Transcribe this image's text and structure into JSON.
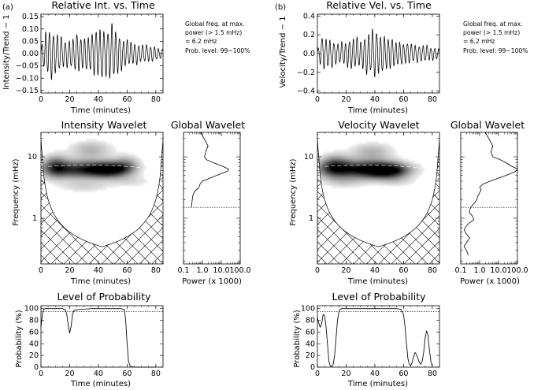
{
  "colors": {
    "ink": "#000000",
    "background": "#ffffff",
    "wavelet_peak": "#000000"
  },
  "columns": [
    {
      "tag": "(a)",
      "series": {
        "title": "Relative Int. vs. Time",
        "ylabel": "Intensity/Trend − 1",
        "xlabel": "Time (minutes)",
        "note": [
          "Global freq. at max.",
          "power (> 1.5 mHz)",
          "= 6.2 mHz",
          "Prob. level: 99−100%"
        ]
      },
      "wavelet": {
        "title": "Intensity Wavelet",
        "ylabel": "Frequency (mHz)",
        "xlabel": "Time (minutes)"
      },
      "global": {
        "title": "Global Wavelet",
        "xlabel": "Power (x 1000)"
      },
      "prob": {
        "title": "Level of Probability",
        "ylabel": "Probability (%)",
        "xlabel": "Time (minutes)"
      }
    },
    {
      "tag": "(b)",
      "series": {
        "title": "Relative Vel. vs. Time",
        "ylabel": "Velocity/Trend − 1",
        "xlabel": "Time (minutes)",
        "note": [
          "Global freq. at max.",
          "power (> 1.5 mHz)",
          "= 6.2 mHz",
          "Prob. level: 99−100%"
        ]
      },
      "wavelet": {
        "title": "Velocity Wavelet",
        "ylabel": "Frequency (mHz)",
        "xlabel": "Time (minutes)"
      },
      "global": {
        "title": "Global Wavelet",
        "xlabel": "Power (x 1000)"
      },
      "prob": {
        "title": "Level of Probability",
        "ylabel": "Probability (%)",
        "xlabel": "Time (minutes)"
      }
    }
  ],
  "chart_data": [
    {
      "panel": "a-series",
      "type": "line",
      "title": "Relative Int. vs. Time",
      "xlabel": "Time (minutes)",
      "ylabel": "Intensity/Trend − 1",
      "xlim": [
        0,
        85
      ],
      "ylim": [
        -0.16,
        0.16
      ],
      "xticks": [
        0,
        20,
        40,
        60,
        80
      ],
      "yticks": [
        -0.15,
        -0.1,
        -0.05,
        0.0,
        0.05,
        0.1,
        0.15
      ],
      "ytick_labels": [
        "−0.15",
        "−0.10",
        "−0.05",
        "0.00",
        "0.05",
        "0.10",
        "0.15"
      ],
      "oscillation": {
        "period_min": 2.7,
        "envelope_t": [
          0,
          3,
          8,
          15,
          20,
          25,
          30,
          35,
          40,
          45,
          50,
          55,
          60,
          65,
          70,
          75,
          80,
          85
        ],
        "envelope_amp": [
          0.02,
          0.1,
          0.11,
          0.07,
          0.06,
          0.09,
          0.07,
          0.09,
          0.12,
          0.11,
          0.13,
          0.08,
          0.06,
          0.05,
          0.04,
          0.04,
          0.03,
          0.02
        ]
      }
    },
    {
      "panel": "b-series",
      "type": "line",
      "title": "Relative Vel. vs. Time",
      "xlabel": "Time (minutes)",
      "ylabel": "Velocity/Trend − 1",
      "xlim": [
        0,
        85
      ],
      "ylim": [
        -0.42,
        0.42
      ],
      "xticks": [
        0,
        20,
        40,
        60,
        80
      ],
      "yticks": [
        -0.4,
        -0.2,
        0.0,
        0.2,
        0.4
      ],
      "ytick_labels": [
        "−0.4",
        "−0.2",
        "0.0",
        "0.2",
        "0.4"
      ],
      "oscillation": {
        "period_min": 2.7,
        "envelope_t": [
          0,
          3,
          8,
          15,
          20,
          25,
          30,
          35,
          40,
          45,
          50,
          55,
          60,
          65,
          70,
          75,
          80,
          85
        ],
        "envelope_amp": [
          0.05,
          0.2,
          0.18,
          0.12,
          0.15,
          0.2,
          0.16,
          0.25,
          0.3,
          0.22,
          0.2,
          0.15,
          0.13,
          0.12,
          0.1,
          0.1,
          0.08,
          0.06
        ]
      }
    },
    {
      "panel": "a-wavelet",
      "type": "heatmap",
      "title": "Intensity Wavelet",
      "xlabel": "Time (minutes)",
      "ylabel": "Frequency (mHz)",
      "xlim": [
        0,
        85
      ],
      "ylim_log": [
        0.18,
        25
      ],
      "xticks": [
        0,
        20,
        40,
        60,
        80
      ],
      "yticks": [
        1,
        10
      ],
      "ytick_labels": [
        "1",
        "10"
      ],
      "peak_frequency_mhz": 6.2,
      "blobs": [
        {
          "t": 28,
          "f": 6.2,
          "st": 16,
          "sf": 0.1,
          "amp": 0.85
        },
        {
          "t": 48,
          "f": 6.2,
          "st": 9,
          "sf": 0.08,
          "amp": 1.0
        },
        {
          "t": 10,
          "f": 7.0,
          "st": 6,
          "sf": 0.12,
          "amp": 0.55
        },
        {
          "t": 35,
          "f": 13.0,
          "st": 10,
          "sf": 0.1,
          "amp": 0.3
        },
        {
          "t": 60,
          "f": 7.5,
          "st": 6,
          "sf": 0.1,
          "amp": 0.35
        },
        {
          "t": 30,
          "f": 3.3,
          "st": 12,
          "sf": 0.06,
          "amp": 0.18
        },
        {
          "t": 62,
          "f": 4.0,
          "st": 10,
          "sf": 0.06,
          "amp": 0.15
        }
      ]
    },
    {
      "panel": "b-wavelet",
      "type": "heatmap",
      "title": "Velocity Wavelet",
      "xlabel": "Time (minutes)",
      "ylabel": "Frequency (mHz)",
      "xlim": [
        0,
        85
      ],
      "ylim_log": [
        0.18,
        25
      ],
      "xticks": [
        0,
        20,
        40,
        60,
        80
      ],
      "yticks": [
        1,
        10
      ],
      "ytick_labels": [
        "1",
        "10"
      ],
      "peak_frequency_mhz": 6.2,
      "blobs": [
        {
          "t": 30,
          "f": 6.2,
          "st": 18,
          "sf": 0.1,
          "amp": 0.9
        },
        {
          "t": 48,
          "f": 6.0,
          "st": 10,
          "sf": 0.08,
          "amp": 1.0
        },
        {
          "t": 12,
          "f": 7.0,
          "st": 7,
          "sf": 0.12,
          "amp": 0.6
        },
        {
          "t": 38,
          "f": 12.0,
          "st": 10,
          "sf": 0.1,
          "amp": 0.3
        },
        {
          "t": 20,
          "f": 3.8,
          "st": 10,
          "sf": 0.06,
          "amp": 0.15
        },
        {
          "t": 55,
          "f": 4.0,
          "st": 8,
          "sf": 0.06,
          "amp": 0.15
        }
      ]
    },
    {
      "panel": "a-global",
      "type": "line",
      "title": "Global Wavelet",
      "xlabel": "Power (x 1000)",
      "xscale": "log",
      "xlim": [
        0.1,
        100
      ],
      "xticks": [
        0.1,
        1.0,
        10.0,
        100.0
      ],
      "xtick_labels": [
        "0.1",
        "1.0",
        "10.0",
        "100.0"
      ],
      "significance_frequency_mhz": 1.5,
      "freq_mhz": [
        25,
        20,
        15,
        12,
        10,
        9,
        8,
        7,
        6.5,
        6.2,
        5.8,
        5.2,
        4.5,
        4.0,
        3.6,
        3.3,
        3.0,
        2.8,
        2.6,
        2.4,
        2.2,
        2.0,
        1.8,
        1.6,
        1.5
      ],
      "power": [
        0.8,
        1.2,
        2.0,
        1.5,
        1.3,
        1.6,
        4.0,
        12,
        20,
        25,
        20,
        8.0,
        2.5,
        1.0,
        0.75,
        0.7,
        0.55,
        0.42,
        0.36,
        0.32,
        0.3,
        0.29,
        0.28,
        0.27,
        0.26
      ]
    },
    {
      "panel": "b-global",
      "type": "line",
      "title": "Global Wavelet",
      "xlabel": "Power (x 1000)",
      "xscale": "log",
      "xlim": [
        0.1,
        100
      ],
      "xticks": [
        0.1,
        1.0,
        10.0,
        100.0
      ],
      "xtick_labels": [
        "0.1",
        "1.0",
        "10.0",
        "100.0"
      ],
      "significance_frequency_mhz": 1.5,
      "freq_mhz": [
        25,
        20,
        15,
        12,
        10,
        9,
        8,
        7,
        6.5,
        6.2,
        5.8,
        5.2,
        4.5,
        4.0,
        3.6,
        3.2,
        2.9,
        2.6,
        2.3,
        2.0,
        1.8,
        1.6,
        1.4,
        1.25,
        1.1,
        0.95,
        0.85,
        0.75,
        0.65,
        0.55,
        0.48,
        0.4,
        0.35,
        0.3,
        0.25
      ],
      "power": [
        2.0,
        3.0,
        5.0,
        4.0,
        5.0,
        12,
        25,
        50,
        85,
        100,
        80,
        35,
        10,
        3.5,
        1.5,
        1.0,
        1.2,
        1.0,
        0.8,
        0.7,
        0.55,
        0.4,
        0.3,
        0.28,
        0.4,
        0.5,
        0.3,
        0.2,
        0.15,
        0.2,
        0.3,
        0.2,
        0.15,
        0.2,
        0.25
      ]
    },
    {
      "panel": "a-prob",
      "type": "line",
      "title": "Level of Probability",
      "xlabel": "Time (minutes)",
      "ylabel": "Probability (%)",
      "xlim": [
        0,
        85
      ],
      "ylim": [
        0,
        105
      ],
      "xticks": [
        0,
        20,
        40,
        60,
        80
      ],
      "yticks": [
        0,
        20,
        40,
        60,
        80,
        100
      ],
      "threshold": 95,
      "x": [
        0,
        1,
        2,
        3,
        5,
        10,
        15,
        17,
        18,
        19,
        20,
        21,
        22,
        23,
        25,
        28,
        30,
        35,
        40,
        45,
        50,
        55,
        58,
        59,
        60,
        61,
        62,
        63,
        65,
        70,
        75,
        80
      ],
      "y": [
        68,
        90,
        99,
        100,
        100,
        100,
        100,
        98,
        90,
        72,
        58,
        70,
        90,
        97,
        98,
        99,
        99,
        100,
        100,
        100,
        100,
        100,
        99,
        80,
        40,
        10,
        2,
        1,
        0,
        0,
        0,
        0
      ]
    },
    {
      "panel": "b-prob",
      "type": "line",
      "title": "Level of Probability",
      "xlabel": "Time (minutes)",
      "ylabel": "Probability (%)",
      "xlim": [
        0,
        85
      ],
      "ylim": [
        0,
        105
      ],
      "xticks": [
        0,
        20,
        40,
        60,
        80
      ],
      "yticks": [
        0,
        20,
        40,
        60,
        80,
        100
      ],
      "threshold": 95,
      "x": [
        0,
        1,
        2,
        3,
        4,
        5,
        6,
        7,
        8,
        9,
        10,
        11,
        12,
        13,
        14,
        15,
        16,
        17,
        18,
        20,
        30,
        40,
        50,
        55,
        58,
        60,
        61,
        62,
        63,
        64,
        65,
        66,
        67,
        68,
        69,
        70,
        71,
        72,
        73,
        74,
        75,
        76,
        77,
        78,
        79,
        80
      ],
      "y": [
        85,
        75,
        68,
        75,
        90,
        88,
        70,
        40,
        10,
        2,
        1,
        5,
        20,
        50,
        80,
        95,
        99,
        100,
        100,
        100,
        100,
        100,
        100,
        100,
        99,
        90,
        70,
        40,
        15,
        5,
        3,
        8,
        18,
        25,
        22,
        15,
        8,
        5,
        10,
        25,
        50,
        62,
        55,
        30,
        10,
        2
      ]
    }
  ]
}
